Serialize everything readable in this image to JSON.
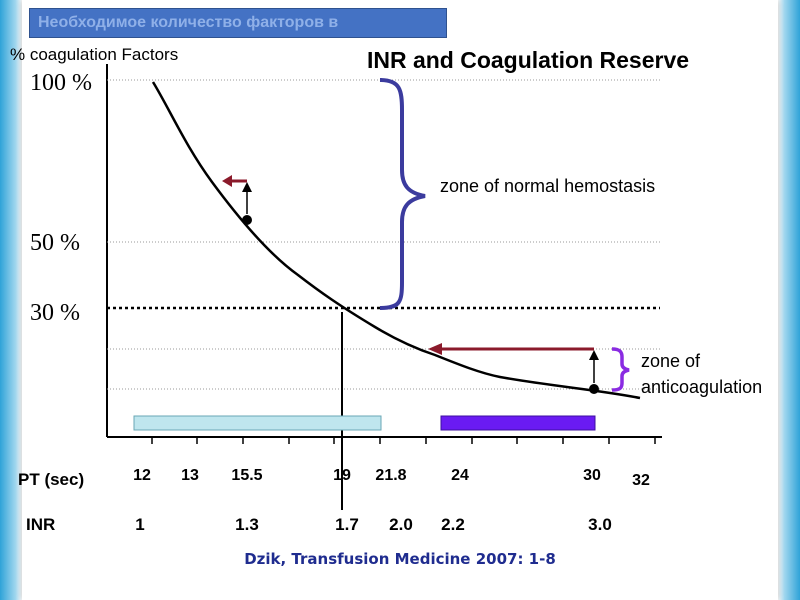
{
  "header": {
    "title": "Необходимое количество факторов в"
  },
  "chart_data": {
    "type": "line",
    "title": "INR and Coagulation Reserve",
    "ylabel": "% coagulation Factors",
    "y_ticks": [
      "100 %",
      "50 %",
      "30 %"
    ],
    "x_axis_rows": [
      {
        "label": "PT (sec)",
        "ticks": [
          "12",
          "13",
          "15.5",
          "19",
          "21.8",
          "24",
          "30",
          "32"
        ]
      },
      {
        "label": "INR",
        "ticks": [
          "1",
          "1.3",
          "1.7",
          "2.0",
          "2.2",
          "3.0"
        ]
      }
    ],
    "series": [
      {
        "x_pt_sec": [
          12.4,
          13.7,
          14.8,
          16.5,
          19.0,
          21.5,
          24.0,
          27.0,
          30.0,
          32.0
        ],
        "y_percent": [
          100,
          78,
          60,
          46,
          30,
          20,
          14,
          10,
          7,
          5
        ]
      }
    ],
    "points": [
      {
        "x_pt_sec": 15.5,
        "y_percent": 55
      },
      {
        "x_pt_sec": 30.0,
        "y_percent": 7
      }
    ],
    "threshold_percent": 30,
    "vertical_marker_pt_sec": 19,
    "annotations": {
      "normal_zone": "zone of normal hemostasis",
      "anticoag_zone_line1": "zone of",
      "anticoag_zone_line2": "anticoagulation"
    },
    "colors": {
      "curve": "#000000",
      "brace_normal": "#3b3b9e",
      "brace_anticoag": "#8a2be2",
      "arrow": "#8b1a2b",
      "range_bar_normal": "#bfe6ee",
      "range_bar_anticoag": "#6a1bf2",
      "source_text": "#1f2c8f"
    },
    "grid": true,
    "source": "Dzik, Transfusion Medicine 2007: 1-8"
  }
}
